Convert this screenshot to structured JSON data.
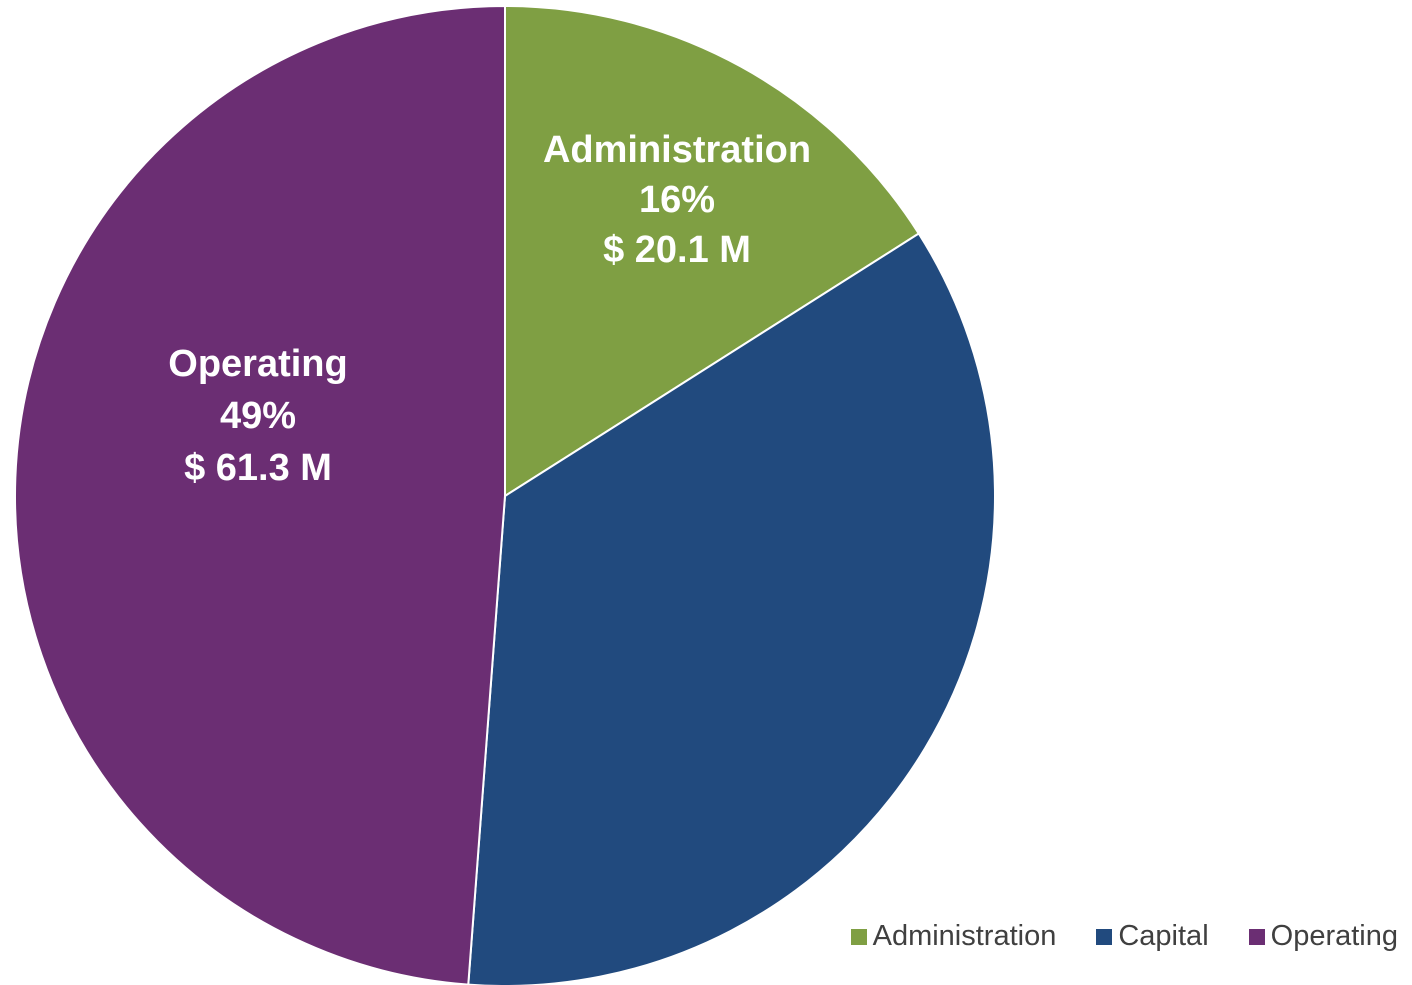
{
  "chart_data": {
    "type": "pie",
    "title": "",
    "unit": "$ M",
    "categories": [
      "Administration",
      "Capital",
      "Operating"
    ],
    "values": [
      20.1,
      44.2,
      61.3
    ],
    "percents": [
      16,
      35,
      49
    ],
    "colors": [
      "#7F9F43",
      "#214A7E",
      "#6B2E73"
    ],
    "slice_labels": [
      {
        "category": "Administration",
        "name": "Administration",
        "percent": "16%",
        "value": "$ 20.1 M"
      },
      {
        "category": "Capital",
        "name": "",
        "percent": "",
        "value": ""
      },
      {
        "category": "Operating",
        "name": "Operating",
        "percent": "49%",
        "value": "$ 61.3 M"
      }
    ],
    "legend": {
      "placement": "bottom-right",
      "entries": [
        "Administration",
        "Capital",
        "Operating"
      ]
    }
  }
}
